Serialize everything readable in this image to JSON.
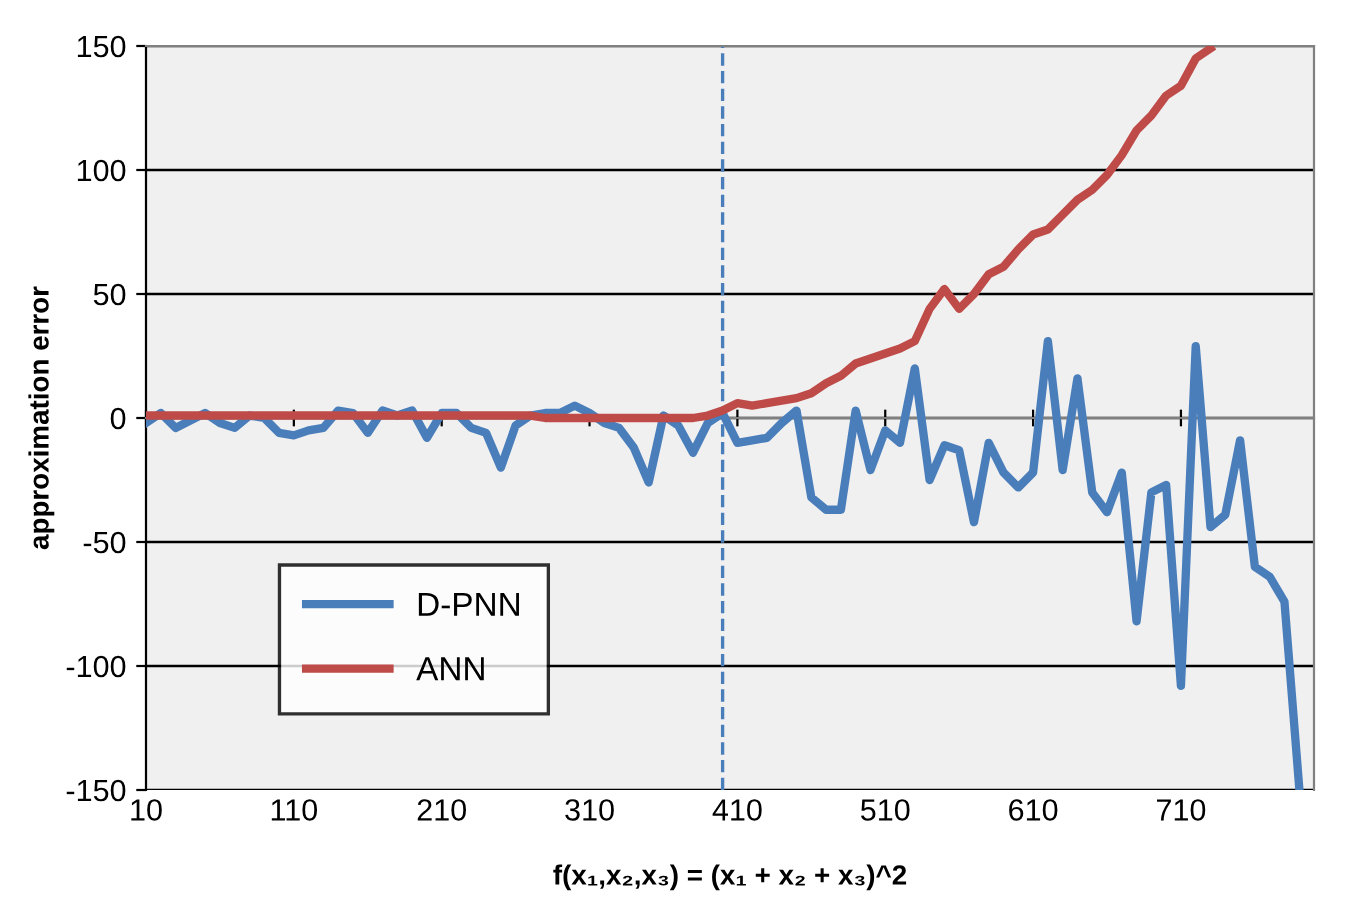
{
  "chart_data": {
    "type": "line",
    "xlabel": "f(x₁,x₂,x₃) = (x₁ + x₂ + x₃)^2",
    "ylabel": "approximation error",
    "series": [
      {
        "name": "D-PNN",
        "color": "#4a7ebb",
        "x": [
          10,
          20,
          30,
          40,
          50,
          60,
          70,
          80,
          90,
          100,
          110,
          120,
          130,
          140,
          150,
          160,
          170,
          180,
          190,
          200,
          210,
          220,
          230,
          240,
          250,
          260,
          270,
          280,
          290,
          300,
          310,
          320,
          330,
          340,
          350,
          360,
          370,
          380,
          390,
          400,
          410,
          420,
          430,
          440,
          450,
          460,
          470,
          480,
          490,
          500,
          510,
          520,
          530,
          540,
          550,
          560,
          570,
          580,
          590,
          600,
          610,
          620,
          630,
          640,
          650,
          660,
          670,
          680,
          690,
          700,
          710,
          720,
          730,
          740,
          750,
          760,
          770,
          780,
          790
        ],
        "values": [
          -2,
          2,
          -4,
          -1,
          2,
          -2,
          -4,
          1,
          0,
          -6,
          -7,
          -5,
          -4,
          3,
          2,
          -6,
          3,
          1,
          3,
          -8,
          2,
          2,
          -4,
          -6,
          -20,
          -3,
          1,
          2,
          2,
          5,
          2,
          -2,
          -4,
          -12,
          -26,
          1,
          -3,
          -14,
          -2,
          2,
          -10,
          -9,
          -8,
          -2,
          3,
          -32,
          -37,
          -37,
          3,
          -21,
          -5,
          -10,
          20,
          -25,
          -11,
          -13,
          -42,
          -10,
          -22,
          -28,
          -22,
          31,
          -21,
          16,
          -30,
          -38,
          -22,
          -82,
          -30,
          -27,
          -108,
          29,
          -44,
          -39,
          -9,
          -60,
          -64,
          -74,
          -149
        ]
      },
      {
        "name": "ANN",
        "color": "#be4b48",
        "x": [
          10,
          20,
          30,
          40,
          50,
          60,
          70,
          80,
          90,
          100,
          110,
          120,
          130,
          140,
          150,
          160,
          170,
          180,
          190,
          200,
          210,
          220,
          230,
          240,
          250,
          260,
          270,
          280,
          290,
          300,
          310,
          320,
          330,
          340,
          350,
          360,
          370,
          380,
          390,
          400,
          410,
          420,
          430,
          440,
          450,
          460,
          470,
          480,
          490,
          500,
          510,
          520,
          530,
          540,
          550,
          560,
          570,
          580,
          590,
          600,
          610,
          620,
          630,
          640,
          650,
          660,
          670,
          680,
          690,
          700,
          710,
          720,
          730
        ],
        "values": [
          1,
          1,
          1,
          1,
          1,
          1,
          1,
          1,
          1,
          1,
          1,
          1,
          1,
          1,
          1,
          1,
          1,
          1,
          1,
          1,
          1,
          1,
          1,
          1,
          1,
          1,
          1,
          0,
          0,
          0,
          0,
          0,
          0,
          0,
          0,
          0,
          0,
          0,
          1,
          3,
          6,
          5,
          6,
          7,
          8,
          10,
          14,
          17,
          22,
          24,
          26,
          28,
          31,
          44,
          52,
          44,
          50,
          58,
          61,
          68,
          74,
          76,
          82,
          88,
          92,
          98,
          106,
          116,
          122,
          130,
          134,
          145,
          149
        ]
      }
    ],
    "xlim": [
      10,
      800
    ],
    "xticks": [
      10,
      110,
      210,
      310,
      410,
      510,
      610,
      710
    ],
    "ylim": [
      -150,
      150
    ],
    "yticks": [
      -150,
      -100,
      -50,
      0,
      50,
      100,
      150
    ],
    "grid": "y",
    "legend": "bottom left",
    "marker": "none",
    "line_style": "solid",
    "ref_lines": [
      {
        "axis": "x",
        "value": 400,
        "color": "#4a7ebb",
        "line_style": "dashed"
      }
    ]
  }
}
